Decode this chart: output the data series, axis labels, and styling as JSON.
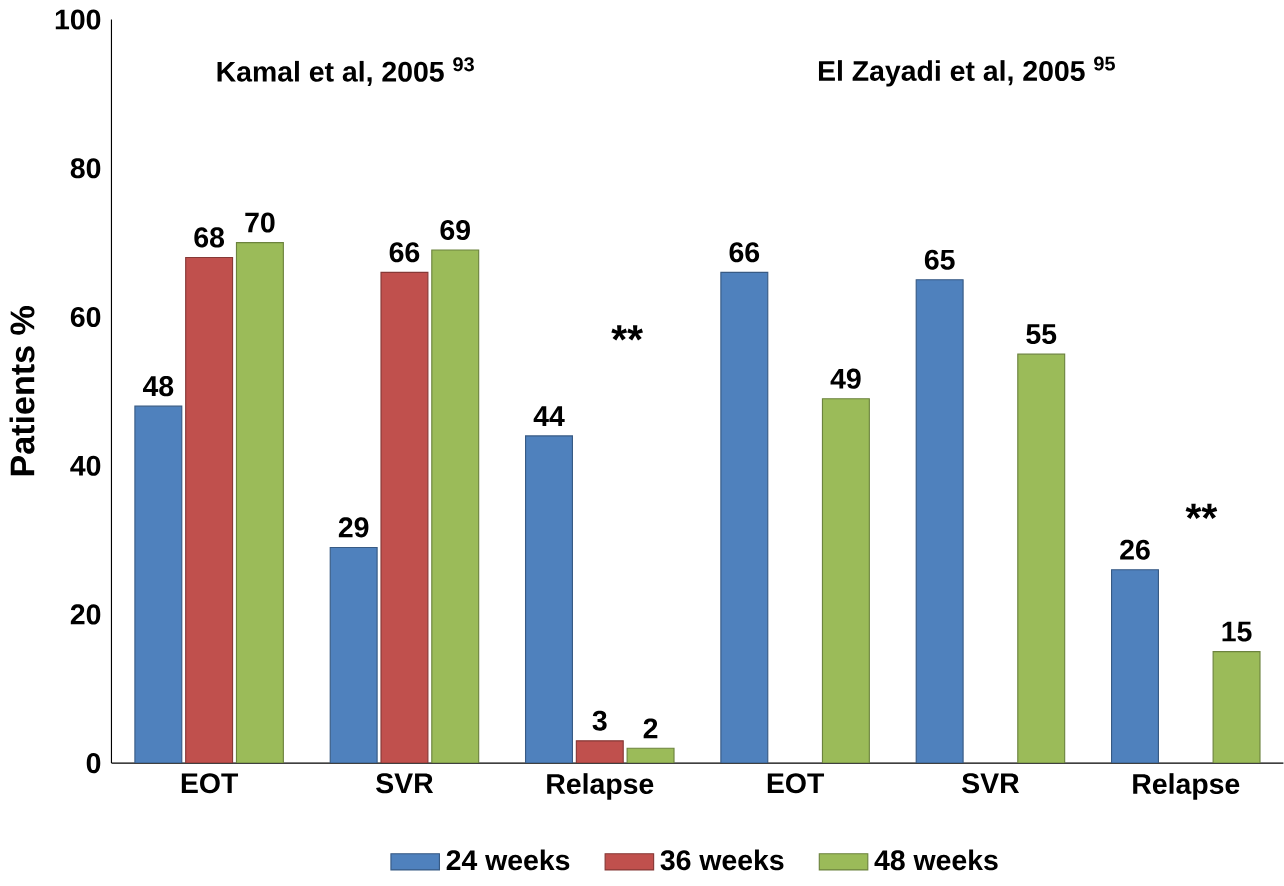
{
  "chart_data": {
    "type": "bar",
    "ylabel": "Patients %",
    "categories": [
      "EOT",
      "SVR",
      "Relapse",
      "EOT",
      "SVR",
      "Relapse"
    ],
    "series": [
      {
        "name": "24 weeks",
        "color": "#4f81bd",
        "values": [
          48,
          29,
          44,
          66,
          65,
          26
        ]
      },
      {
        "name": "36 weeks",
        "color": "#c0504d",
        "values": [
          68,
          66,
          3,
          null,
          null,
          null
        ]
      },
      {
        "name": "48 weeks",
        "color": "#9bbb59",
        "values": [
          70,
          69,
          2,
          49,
          55,
          15
        ]
      }
    ],
    "ylim": [
      0,
      100
    ],
    "yticks": [
      0,
      20,
      40,
      60,
      80,
      100
    ],
    "grid": false,
    "legend": "bottom",
    "data_labels": true,
    "annotations": [
      "Kamal et al, 2005 $^{93}$",
      "El Zayadi et al, 2005 $^{95}$",
      "**",
      "**"
    ]
  }
}
